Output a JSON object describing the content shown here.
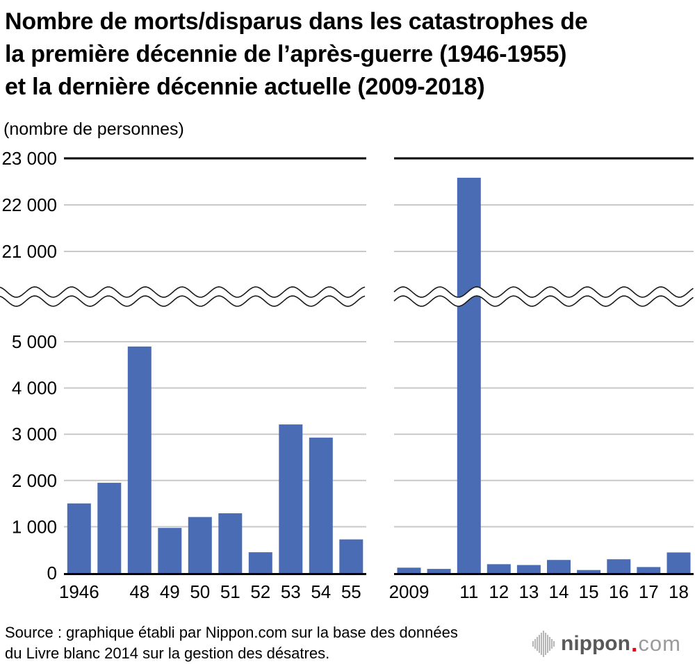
{
  "header": {
    "title_lines": [
      "Nombre de morts/disparus dans les catastrophes de",
      "la première décennie de l’après-guerre (1946-1955)",
      "et la dernière décennie actuelle (2009-2018)"
    ],
    "unit_label": "(nombre de personnes)"
  },
  "chart_data": {
    "type": "bar",
    "title": "Nombre de morts/disparus dans les catastrophes de la première décennie de l’après-guerre (1946-1955) et la dernière décennie actuelle (2009-2018)",
    "ylabel": "(nombre de personnes)",
    "grid": true,
    "legend": "none",
    "bar_color": "#4a6cb4",
    "gridline_color": "#c9c9c9",
    "axis_color": "#000000",
    "y_axis": {
      "broken_axis": true,
      "break_between": [
        6000,
        20000
      ],
      "upper_ticks": [
        {
          "value": 23000,
          "label": "23 000"
        },
        {
          "value": 22000,
          "label": "22 000"
        },
        {
          "value": 21000,
          "label": "21 000"
        }
      ],
      "lower_ticks": [
        {
          "value": 5000,
          "label": "5 000"
        },
        {
          "value": 4000,
          "label": "4 000"
        },
        {
          "value": 3000,
          "label": "3 000"
        },
        {
          "value": 2000,
          "label": "2 000"
        },
        {
          "value": 1000,
          "label": "1 000"
        },
        {
          "value": 0,
          "label": "0"
        }
      ]
    },
    "panels": [
      {
        "name": "1946-1955",
        "categories": [
          "1946",
          "1947",
          "1948",
          "1949",
          "1950",
          "1951",
          "1952",
          "1953",
          "1954",
          "1955"
        ],
        "tick_labels": [
          "1946",
          "",
          "48",
          "49",
          "50",
          "51",
          "52",
          "53",
          "54",
          "55"
        ],
        "values": [
          1504,
          1950,
          4897,
          975,
          1210,
          1291,
          449,
          3212,
          2926,
          727
        ]
      },
      {
        "name": "2009-2018",
        "categories": [
          "2009",
          "2010",
          "2011",
          "2012",
          "2013",
          "2014",
          "2015",
          "2016",
          "2017",
          "2018"
        ],
        "tick_labels": [
          "2009",
          "",
          "11",
          "12",
          "13",
          "14",
          "15",
          "16",
          "17",
          "18"
        ],
        "values": [
          115,
          89,
          22584,
          190,
          173,
          283,
          64,
          297,
          129,
          444
        ]
      }
    ]
  },
  "footer": {
    "source_lines": [
      "Source : graphique établi par Nippon.com sur la base des données",
      "du Livre blanc 2014 sur la gestion des désatres."
    ],
    "logo": {
      "brand": "nippon",
      "dot": ".",
      "domain": "com",
      "dot_color": "#e60012",
      "icon": "audio-bars-icon"
    }
  }
}
